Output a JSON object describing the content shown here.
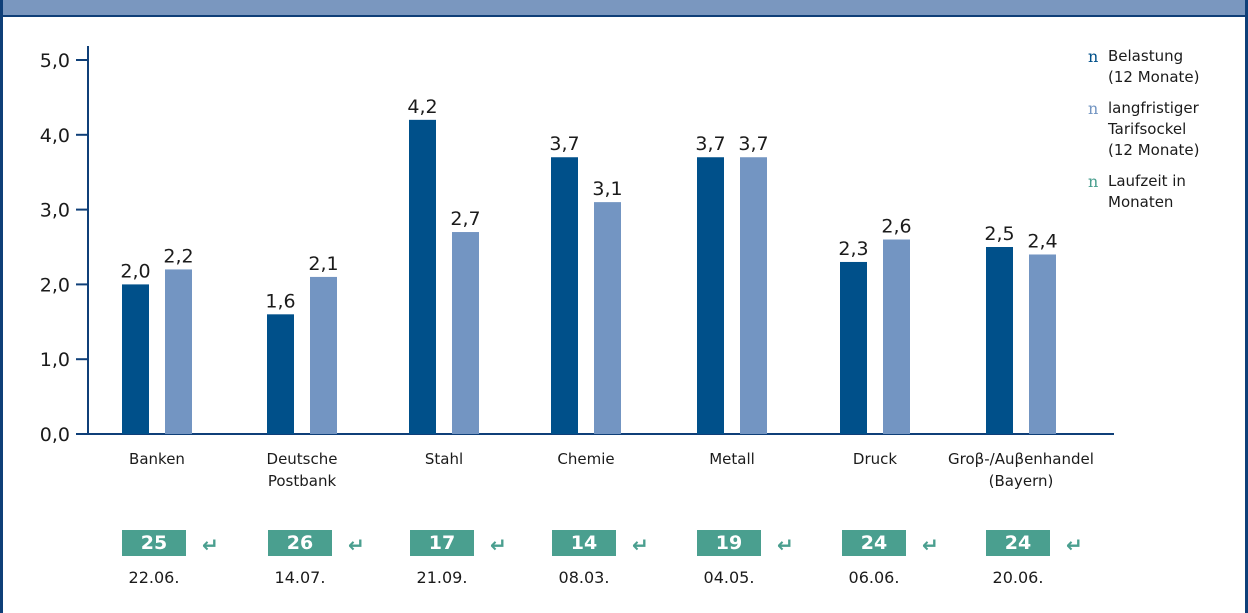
{
  "colors": {
    "frame": "#0f3f78",
    "header_band": "#7a97bf",
    "series1": "#00508a",
    "series2": "#7395c2",
    "duration": "#4a9f8f"
  },
  "chart_data": {
    "type": "bar",
    "ylim": [
      0,
      5
    ],
    "yticks": [
      "0,0",
      "1,0",
      "2,0",
      "3,0",
      "4,0",
      "5,0"
    ],
    "categories": [
      "Banken",
      "Deutsche\nPostbank",
      "Stahl",
      "Chemie",
      "Metall",
      "Druck",
      "Groβ-/Auβenhandel\n(Bayern)"
    ],
    "series": [
      {
        "name": "Belastung\n(12 Monate)",
        "values": [
          2.0,
          1.6,
          4.2,
          3.7,
          3.7,
          2.3,
          2.5
        ],
        "labels": [
          "2,0",
          "1,6",
          "4,2",
          "3,7",
          "3,7",
          "2,3",
          "2,5"
        ]
      },
      {
        "name": "langfristiger\nTarifsockel\n(12 Monate)",
        "values": [
          2.2,
          2.1,
          2.7,
          3.1,
          3.7,
          2.6,
          2.4
        ],
        "labels": [
          "2,2",
          "2,1",
          "2,7",
          "3,1",
          "3,7",
          "2,6",
          "2,4"
        ]
      }
    ],
    "legend": [
      {
        "marker": "n",
        "label": "Belastung\n(12 Monate)",
        "color": "#00508a"
      },
      {
        "marker": "n",
        "label": "langfristiger\nTarifsockel\n(12 Monate)",
        "color": "#7395c2"
      },
      {
        "marker": "n",
        "label": "Laufzeit in\nMonaten",
        "color": "#4a9f8f"
      }
    ],
    "durations": [
      "25",
      "26",
      "17",
      "14",
      "19",
      "24",
      "24"
    ],
    "dates": [
      "22.06.",
      "14.07.",
      "21.09.",
      "08.03.",
      "04.05.",
      "06.06.",
      "20.06."
    ],
    "return_icon": "↵",
    "legend_position": "right"
  }
}
